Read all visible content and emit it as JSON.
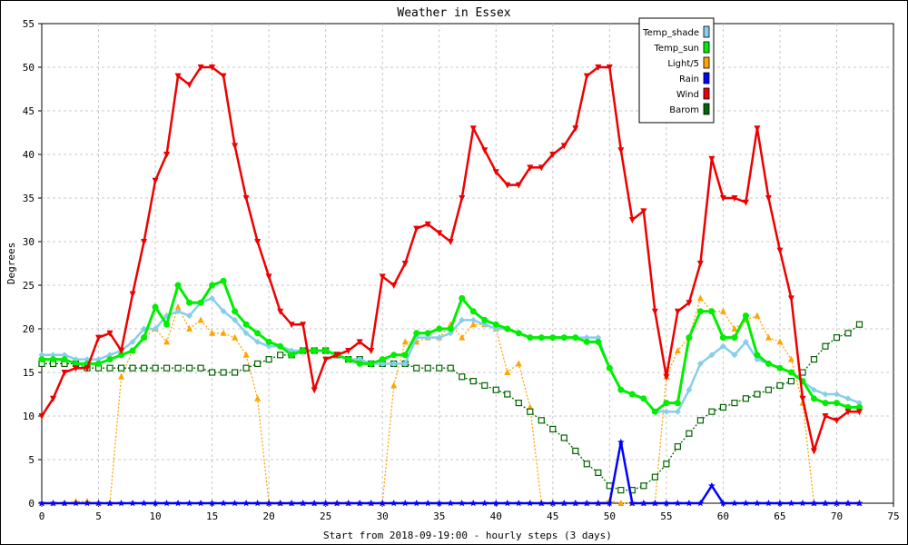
{
  "chart_data": {
    "type": "line",
    "title": "Weather in Essex",
    "xlabel": "Start from 2018-09-19:00 - hourly steps (3 days)",
    "ylabel": "Degrees",
    "xlim": [
      0,
      75
    ],
    "ylim": [
      0,
      55
    ],
    "xticks": [
      0,
      5,
      10,
      15,
      20,
      25,
      30,
      35,
      40,
      45,
      50,
      55,
      60,
      65,
      70,
      75
    ],
    "yticks": [
      0,
      5,
      10,
      15,
      20,
      25,
      30,
      35,
      40,
      45,
      50,
      55
    ],
    "grid": true,
    "legend_position": "top-right",
    "series": [
      {
        "name": "Temp_shade",
        "color": "#87ceeb",
        "marker": "diamond",
        "values": [
          17,
          17,
          17,
          16.5,
          16.5,
          16.5,
          17,
          17.5,
          18.5,
          20,
          20,
          21.5,
          22,
          21.5,
          23,
          23.5,
          22,
          21,
          19.5,
          18.5,
          18,
          18,
          17.5,
          17.5,
          17.5,
          17.5,
          17,
          16.5,
          16.5,
          16,
          16,
          16,
          16,
          19,
          19,
          19,
          19.5,
          21,
          21,
          20.5,
          20,
          20,
          19.5,
          19,
          19,
          19,
          19,
          19,
          19,
          19,
          15.5,
          13,
          12.5,
          12,
          10.5,
          10.5,
          10.5,
          13,
          16,
          17,
          18,
          17,
          18.5,
          16.5,
          16,
          15.5,
          15,
          14,
          13,
          12.5,
          12.5,
          12,
          11.5
        ]
      },
      {
        "name": "Temp_sun",
        "color": "#00ee00",
        "marker": "circle",
        "values": [
          16.5,
          16.5,
          16.5,
          16,
          16,
          16,
          16.5,
          17,
          17.5,
          19,
          22.5,
          20.5,
          25,
          23,
          23,
          25,
          25.5,
          22,
          20.5,
          19.5,
          18.5,
          18,
          17,
          17.5,
          17.5,
          17.5,
          17,
          16.5,
          16,
          16,
          16.5,
          17,
          17,
          19.5,
          19.5,
          20,
          20,
          23.5,
          22,
          21,
          20.5,
          20,
          19.5,
          19,
          19,
          19,
          19,
          19,
          18.5,
          18.5,
          15.5,
          13,
          12.5,
          12,
          10.5,
          11.5,
          11.5,
          19,
          22,
          22,
          19,
          19,
          21.5,
          17,
          16,
          15.5,
          15,
          14,
          12,
          11.5,
          11.5,
          11,
          11
        ]
      },
      {
        "name": "Light/5",
        "color": "#ffa500",
        "marker": "triangle",
        "values": [
          0,
          0,
          0,
          0.2,
          0.2,
          0,
          0,
          14.5,
          17.5,
          19,
          20,
          18.5,
          22.5,
          20,
          21,
          19.5,
          19.5,
          19,
          17,
          12,
          0,
          0,
          0,
          0,
          0,
          0,
          0,
          0,
          0,
          0,
          0,
          13.5,
          18.5,
          18.5,
          19,
          19,
          20.5,
          19,
          20.5,
          20.5,
          20,
          15,
          16,
          11,
          0,
          0,
          0,
          0,
          0,
          0,
          0.3,
          0,
          0,
          0,
          0,
          14.5,
          17.5,
          19,
          23.5,
          22,
          22,
          20,
          21,
          21.5,
          19,
          18.5,
          16.5,
          11.5,
          0,
          0,
          0,
          0,
          0
        ]
      },
      {
        "name": "Rain",
        "color": "#0000ff",
        "marker": "star",
        "values": [
          0,
          0,
          0,
          0,
          0,
          0,
          0,
          0,
          0,
          0,
          0,
          0,
          0,
          0,
          0,
          0,
          0,
          0,
          0,
          0,
          0,
          0,
          0,
          0,
          0,
          0,
          0,
          0,
          0,
          0,
          0,
          0,
          0,
          0,
          0,
          0,
          0,
          0,
          0,
          0,
          0,
          0,
          0,
          0,
          0,
          0,
          0,
          0,
          0,
          0,
          0,
          7,
          0,
          0,
          0,
          0,
          0,
          0,
          0,
          2,
          0,
          0,
          0,
          0,
          0,
          0,
          0,
          0,
          0,
          0,
          0,
          0,
          0
        ]
      },
      {
        "name": "Wind",
        "color": "#ee0000",
        "marker": "triangle-down",
        "values": [
          10,
          12,
          15,
          15.5,
          15.5,
          19,
          19.5,
          17.5,
          24,
          30,
          37,
          40,
          49,
          48,
          50,
          50,
          49,
          41,
          35,
          30,
          26,
          22,
          20.5,
          20.5,
          13,
          16.5,
          17,
          17.5,
          18.5,
          17.5,
          26,
          25,
          27.5,
          31.5,
          32,
          31,
          30,
          35,
          43,
          40.5,
          38,
          36.5,
          36.5,
          38.5,
          38.5,
          40,
          41,
          43,
          49,
          50,
          50,
          40.5,
          32.5,
          33.5,
          22,
          14.5,
          22,
          23,
          27.5,
          39.5,
          35,
          35,
          34.5,
          43,
          35,
          29,
          23.5,
          12,
          6,
          10,
          9.5,
          10.5,
          10.5
        ]
      },
      {
        "name": "Barom",
        "color": "#006400",
        "marker": "square",
        "values": [
          16,
          16,
          16,
          16,
          15.5,
          15.5,
          15.5,
          15.5,
          15.5,
          15.5,
          15.5,
          15.5,
          15.5,
          15.5,
          15.5,
          15,
          15,
          15,
          15.5,
          16,
          16.5,
          17,
          17,
          17.5,
          17.5,
          17.5,
          17,
          16.5,
          16.5,
          16,
          16,
          16,
          16,
          15.5,
          15.5,
          15.5,
          15.5,
          14.5,
          14,
          13.5,
          13,
          12.5,
          11.5,
          10.5,
          9.5,
          8.5,
          7.5,
          6,
          4.5,
          3.5,
          2,
          1.5,
          1.5,
          2,
          3,
          4.5,
          6.5,
          8,
          9.5,
          10.5,
          11,
          11.5,
          12,
          12.5,
          13,
          13.5,
          14,
          15,
          16.5,
          18,
          19,
          19.5,
          20.5
        ]
      }
    ]
  }
}
